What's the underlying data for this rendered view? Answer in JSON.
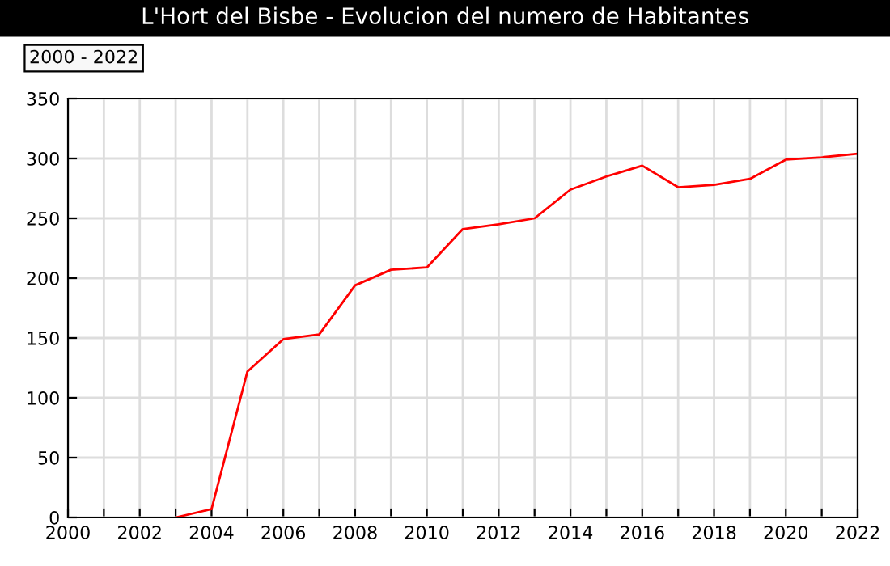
{
  "chart_data": {
    "type": "line",
    "title": "L'Hort del Bisbe - Evolucion del numero de Habitantes",
    "subtitle": "2000 - 2022",
    "x": [
      2003,
      2004,
      2005,
      2006,
      2007,
      2008,
      2009,
      2010,
      2011,
      2012,
      2013,
      2014,
      2015,
      2016,
      2017,
      2018,
      2019,
      2020,
      2021,
      2022
    ],
    "series": [
      {
        "color": "#ff0000",
        "values": [
          0,
          7,
          122,
          149,
          153,
          194,
          207,
          209,
          241,
          245,
          250,
          274,
          285,
          294,
          276,
          278,
          283,
          299,
          301,
          304
        ]
      }
    ],
    "xlim": [
      2000,
      2022
    ],
    "xticks": [
      2000,
      {
        "value": 2001,
        "label": null
      },
      2002,
      {
        "value": 2003,
        "label": null
      },
      2004,
      {
        "value": 2005,
        "label": null
      },
      2006,
      {
        "value": 2007,
        "label": null
      },
      2008,
      {
        "value": 2009,
        "label": null
      },
      2010,
      {
        "value": 2011,
        "label": null
      },
      2012,
      {
        "value": 2013,
        "label": null
      },
      2014,
      {
        "value": 2015,
        "label": null
      },
      2016,
      {
        "value": 2017,
        "label": null
      },
      2018,
      {
        "value": 2019,
        "label": null
      },
      2020,
      {
        "value": 2021,
        "label": null
      },
      2022
    ],
    "ylim": [
      0,
      350
    ],
    "yticks": [
      0,
      50,
      100,
      150,
      200,
      250,
      300,
      350
    ],
    "grid": true,
    "marker": "none",
    "line_style": "solid"
  }
}
